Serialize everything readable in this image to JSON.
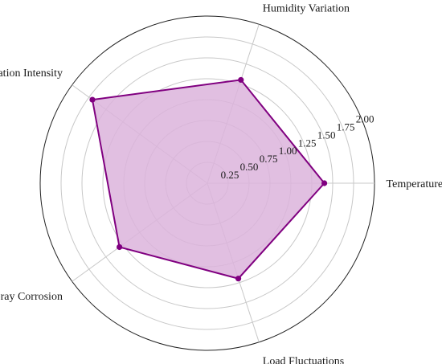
{
  "chart_data": {
    "type": "radar",
    "categories": [
      "Temperature Range",
      "Humidity Variation",
      "Vibration Intensity",
      "Salt Spray Corrosion",
      "Load Fluctuations"
    ],
    "series": [
      {
        "values": [
          1.4,
          1.3,
          1.7,
          1.3,
          1.2
        ],
        "color": "#800080",
        "fill": "#dcb4dc"
      }
    ],
    "rlim": [
      0,
      2.0
    ],
    "r_ticks": [
      0.25,
      0.5,
      0.75,
      1.0,
      1.25,
      1.5,
      1.75,
      2.0
    ],
    "r_tick_labels": [
      "0.25",
      "0.50",
      "0.75",
      "1.00",
      "1.25",
      "1.50",
      "1.75",
      "2.00"
    ],
    "grid": true
  }
}
